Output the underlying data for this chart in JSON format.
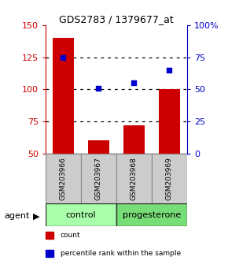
{
  "title": "GDS2783 / 1379677_at",
  "samples": [
    "GSM203966",
    "GSM203967",
    "GSM203968",
    "GSM203969"
  ],
  "counts": [
    140,
    60,
    72,
    100
  ],
  "percentiles": [
    75,
    51,
    55,
    65
  ],
  "bar_color": "#cc0000",
  "dot_color": "#0000cc",
  "ylim_left": [
    50,
    150
  ],
  "ylim_right": [
    0,
    100
  ],
  "yticks_left": [
    50,
    75,
    100,
    125,
    150
  ],
  "yticks_right": [
    0,
    25,
    50,
    75,
    100
  ],
  "groups": [
    {
      "label": "control",
      "color": "#aaffaa",
      "indices": [
        0,
        1
      ]
    },
    {
      "label": "progesterone",
      "color": "#77dd77",
      "indices": [
        2,
        3
      ]
    }
  ],
  "agent_label": "agent",
  "legend": [
    {
      "label": "count",
      "color": "#cc0000"
    },
    {
      "label": "percentile rank within the sample",
      "color": "#0000cc"
    }
  ],
  "background_color": "#ffffff",
  "sample_box_color": "#cccccc",
  "sample_box_edge": "#888888",
  "group_box_edge": "#333333"
}
